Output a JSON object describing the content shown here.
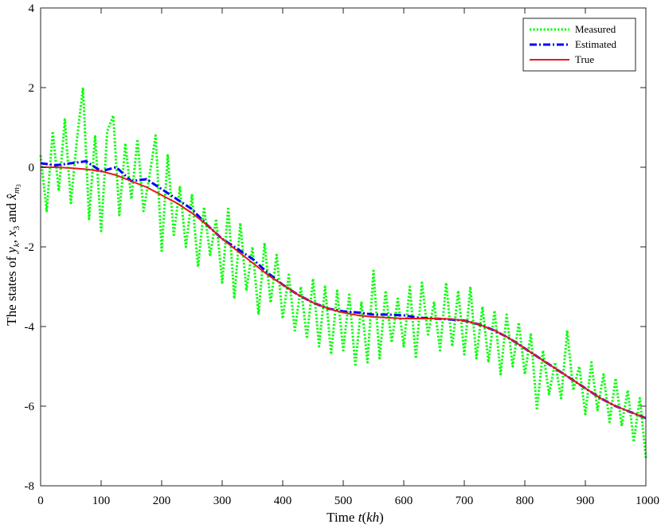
{
  "chart_data": {
    "type": "line",
    "xlabel": "Time t(kh)",
    "ylabel": "The states of yk, x3 and x̂m3",
    "xlim": [
      0,
      1000
    ],
    "ylim": [
      -8,
      4
    ],
    "x_ticks": [
      "0",
      "100",
      "200",
      "300",
      "400",
      "500",
      "600",
      "700",
      "800",
      "900",
      "1000"
    ],
    "y_ticks": [
      "4",
      "2",
      "0",
      "-2",
      "-4",
      "-6",
      "-8"
    ],
    "grid": false,
    "legend_position": "top-right",
    "series": [
      {
        "name": "Measured",
        "color": "#00ff00",
        "style": "dotted",
        "note_values": "noisy samples around True, amplitude about ±1",
        "x": [
          0,
          10,
          20,
          30,
          40,
          50,
          60,
          70,
          80,
          90,
          100,
          110,
          120,
          130,
          140,
          150,
          160,
          170,
          180,
          190,
          200,
          210,
          220,
          230,
          240,
          250,
          260,
          270,
          280,
          290,
          300,
          310,
          320,
          330,
          340,
          350,
          360,
          370,
          380,
          390,
          400,
          410,
          420,
          430,
          440,
          450,
          460,
          470,
          480,
          490,
          500,
          510,
          520,
          530,
          540,
          550,
          560,
          570,
          580,
          590,
          600,
          610,
          620,
          630,
          640,
          650,
          660,
          670,
          680,
          690,
          700,
          710,
          720,
          730,
          740,
          750,
          760,
          770,
          780,
          790,
          800,
          810,
          820,
          830,
          840,
          850,
          860,
          870,
          880,
          890,
          900,
          910,
          920,
          930,
          940,
          950,
          960,
          970,
          980,
          990,
          1000
        ],
        "values": [
          0.3,
          -1.1,
          0.9,
          -0.6,
          1.2,
          -0.9,
          0.7,
          2.0,
          -1.3,
          0.8,
          -1.6,
          0.9,
          1.3,
          -1.2,
          0.6,
          -0.8,
          0.7,
          -1.1,
          -0.2,
          0.8,
          -2.1,
          0.3,
          -1.7,
          -0.5,
          -2.0,
          -0.7,
          -2.5,
          -1.0,
          -2.2,
          -1.3,
          -2.9,
          -1.0,
          -3.3,
          -1.4,
          -3.1,
          -2.0,
          -3.7,
          -1.9,
          -3.4,
          -2.2,
          -3.8,
          -2.7,
          -4.1,
          -3.0,
          -4.3,
          -2.8,
          -4.5,
          -3.0,
          -4.7,
          -3.1,
          -4.6,
          -3.2,
          -5.0,
          -3.4,
          -4.9,
          -2.6,
          -4.8,
          -3.1,
          -4.4,
          -3.3,
          -4.5,
          -3.0,
          -4.8,
          -2.9,
          -4.2,
          -3.4,
          -4.6,
          -2.9,
          -4.5,
          -3.1,
          -4.7,
          -3.0,
          -4.8,
          -3.5,
          -4.9,
          -3.6,
          -5.2,
          -3.7,
          -5.0,
          -3.9,
          -5.2,
          -4.2,
          -6.1,
          -4.6,
          -5.7,
          -4.9,
          -5.8,
          -4.1,
          -5.6,
          -5.0,
          -6.2,
          -4.9,
          -6.1,
          -5.2,
          -6.4,
          -5.3,
          -6.5,
          -5.6,
          -6.9,
          -5.8,
          -7.3
        ]
      },
      {
        "name": "Estimated",
        "color": "#0000ff",
        "style": "dashdot",
        "x": [
          0,
          25,
          50,
          75,
          100,
          125,
          150,
          175,
          200,
          225,
          250,
          275,
          300,
          325,
          350,
          375,
          400,
          425,
          450,
          475,
          500,
          525,
          550,
          575,
          600,
          625,
          650,
          675,
          700,
          725,
          750,
          775,
          800,
          825,
          850,
          875,
          900,
          925,
          950,
          975,
          1000
        ],
        "values": [
          0.1,
          0.05,
          0.1,
          0.15,
          -0.1,
          0.0,
          -0.35,
          -0.3,
          -0.55,
          -0.8,
          -1.05,
          -1.45,
          -1.8,
          -2.05,
          -2.3,
          -2.65,
          -2.95,
          -3.2,
          -3.4,
          -3.55,
          -3.62,
          -3.65,
          -3.7,
          -3.7,
          -3.72,
          -3.78,
          -3.8,
          -3.82,
          -3.85,
          -3.95,
          -4.1,
          -4.3,
          -4.55,
          -4.8,
          -5.05,
          -5.3,
          -5.55,
          -5.8,
          -6.0,
          -6.15,
          -6.3
        ]
      },
      {
        "name": "True",
        "color": "#e31a1c",
        "style": "solid",
        "x": [
          0,
          25,
          50,
          75,
          100,
          125,
          150,
          175,
          200,
          225,
          250,
          275,
          300,
          325,
          350,
          375,
          400,
          425,
          450,
          475,
          500,
          525,
          550,
          575,
          600,
          625,
          650,
          675,
          700,
          725,
          750,
          775,
          800,
          825,
          850,
          875,
          900,
          925,
          950,
          975,
          1000
        ],
        "values": [
          0.0,
          0.0,
          -0.02,
          -0.05,
          -0.1,
          -0.2,
          -0.35,
          -0.5,
          -0.7,
          -0.9,
          -1.15,
          -1.45,
          -1.8,
          -2.1,
          -2.4,
          -2.7,
          -2.95,
          -3.2,
          -3.4,
          -3.55,
          -3.65,
          -3.72,
          -3.76,
          -3.78,
          -3.8,
          -3.8,
          -3.8,
          -3.81,
          -3.85,
          -3.95,
          -4.1,
          -4.3,
          -4.55,
          -4.8,
          -5.05,
          -5.3,
          -5.55,
          -5.8,
          -6.0,
          -6.15,
          -6.3
        ]
      }
    ]
  }
}
